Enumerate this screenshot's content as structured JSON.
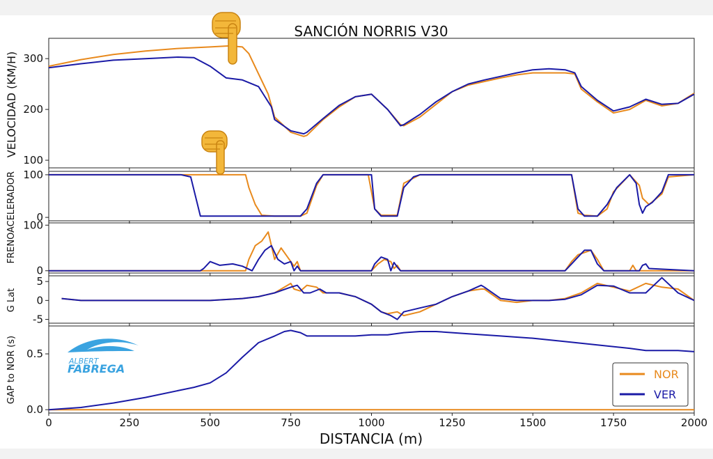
{
  "chart_data": {
    "type": "line",
    "title": "SANCIÓN NORRIS V30",
    "xlabel": "DISTANCIA (m)",
    "xlim": [
      0,
      2000
    ],
    "x_ticks": [
      "0",
      "250",
      "500",
      "750",
      "1000",
      "1250",
      "1500",
      "1750",
      "2000"
    ],
    "colors": {
      "NOR": "#e8891c",
      "VER": "#1a1aa6"
    },
    "legend": {
      "placement": "bottom-right",
      "entries": [
        "NOR",
        "VER"
      ]
    },
    "watermark": {
      "line1": "ALBERT",
      "line2": "FABREGA"
    },
    "pointer_icons": [
      {
        "name": "pointing-down-hand-icon",
        "x": 580,
        "panel": "speed"
      },
      {
        "name": "pointing-down-hand-icon",
        "x": 540,
        "panel": "throttle"
      }
    ],
    "panels": [
      {
        "id": "speed",
        "ylabel": "VELOCIDAD (KM/H)",
        "ylim": [
          85,
          340
        ],
        "yticks": [
          100,
          200,
          300
        ],
        "series": [
          {
            "name": "NOR",
            "x": [
              0,
              100,
              200,
              300,
              400,
              500,
              560,
              600,
              620,
              650,
              680,
              700,
              750,
              790,
              800,
              850,
              900,
              950,
              1000,
              1050,
              1090,
              1100,
              1150,
              1200,
              1250,
              1300,
              1350,
              1400,
              1450,
              1500,
              1550,
              1600,
              1630,
              1650,
              1700,
              1750,
              1800,
              1850,
              1900,
              1950,
              2000
            ],
            "y": [
              285,
              298,
              308,
              315,
              320,
              323,
              325,
              323,
              310,
              270,
              230,
              185,
              155,
              147,
              149,
              180,
              205,
              225,
              230,
              200,
              170,
              168,
              185,
              210,
              235,
              248,
              255,
              262,
              268,
              272,
              272,
              272,
              270,
              240,
              215,
              193,
              200,
              218,
              207,
              212,
              232
            ]
          },
          {
            "name": "VER",
            "x": [
              0,
              100,
              200,
              300,
              400,
              450,
              500,
              550,
              600,
              650,
              690,
              700,
              750,
              790,
              800,
              850,
              900,
              950,
              1000,
              1050,
              1090,
              1100,
              1150,
              1200,
              1250,
              1300,
              1350,
              1400,
              1450,
              1500,
              1550,
              1600,
              1630,
              1650,
              1700,
              1750,
              1800,
              1850,
              1900,
              1950,
              2000
            ],
            "y": [
              282,
              290,
              297,
              300,
              303,
              302,
              285,
              262,
              258,
              245,
              205,
              180,
              158,
              152,
              155,
              182,
              208,
              225,
              230,
              200,
              168,
              170,
              190,
              215,
              235,
              250,
              258,
              265,
              272,
              278,
              280,
              278,
              272,
              245,
              218,
              197,
              205,
              220,
              210,
              212,
              230
            ]
          }
        ]
      },
      {
        "id": "throttle",
        "ylabel": "ACELERADOR",
        "ylim": [
          -8,
          108
        ],
        "yticks": [
          0,
          100
        ],
        "series": [
          {
            "name": "NOR",
            "x": [
              0,
              440,
              450,
              600,
              610,
              620,
              640,
              660,
              700,
              780,
              800,
              830,
              850,
              990,
              1010,
              1030,
              1070,
              1080,
              1100,
              1130,
              1150,
              1620,
              1640,
              1660,
              1700,
              1730,
              1750,
              1800,
              1830,
              1840,
              1860,
              1900,
              1920,
              2000
            ],
            "y": [
              100,
              100,
              100,
              100,
              100,
              70,
              30,
              5,
              3,
              3,
              10,
              75,
              100,
              100,
              20,
              5,
              5,
              5,
              80,
              92,
              100,
              100,
              10,
              5,
              3,
              20,
              60,
              100,
              75,
              45,
              30,
              55,
              95,
              100
            ]
          },
          {
            "name": "VER",
            "x": [
              0,
              410,
              440,
              470,
              520,
              550,
              600,
              620,
              660,
              700,
              760,
              780,
              800,
              830,
              850,
              990,
              1000,
              1010,
              1030,
              1070,
              1080,
              1100,
              1130,
              1150,
              1620,
              1640,
              1660,
              1700,
              1730,
              1760,
              1800,
              1820,
              1830,
              1840,
              1850,
              1870,
              1900,
              1920,
              2000
            ],
            "y": [
              100,
              100,
              95,
              3,
              3,
              3,
              3,
              3,
              3,
              3,
              3,
              3,
              20,
              80,
              100,
              100,
              100,
              20,
              3,
              3,
              3,
              70,
              95,
              100,
              100,
              20,
              3,
              3,
              30,
              70,
              100,
              80,
              30,
              10,
              25,
              35,
              60,
              100,
              100
            ]
          }
        ]
      },
      {
        "id": "brake",
        "ylabel": "FRENO",
        "ylim": [
          -5,
          105
        ],
        "yticks": [
          0,
          100
        ],
        "series": [
          {
            "name": "NOR",
            "x": [
              0,
              600,
              610,
              620,
              640,
              660,
              680,
              690,
              700,
              720,
              740,
              760,
              770,
              780,
              1000,
              1020,
              1040,
              1060,
              1070,
              1080,
              1090,
              1100,
              1600,
              1620,
              1640,
              1660,
              1680,
              1700,
              1720,
              1800,
              1810,
              1820,
              2000
            ],
            "y": [
              0,
              0,
              0,
              25,
              55,
              65,
              85,
              55,
              25,
              50,
              30,
              10,
              20,
              0,
              0,
              15,
              25,
              20,
              5,
              12,
              0,
              0,
              0,
              20,
              35,
              40,
              45,
              25,
              0,
              0,
              12,
              0,
              0
            ]
          },
          {
            "name": "VER",
            "x": [
              0,
              470,
              480,
              500,
              530,
              570,
              600,
              630,
              650,
              670,
              690,
              710,
              730,
              750,
              760,
              770,
              780,
              1000,
              1010,
              1030,
              1050,
              1060,
              1070,
              1080,
              1090,
              1600,
              1620,
              1640,
              1660,
              1680,
              1700,
              1720,
              1830,
              1840,
              1850,
              1860,
              2000
            ],
            "y": [
              0,
              0,
              5,
              20,
              12,
              15,
              10,
              0,
              25,
              45,
              55,
              25,
              15,
              20,
              0,
              10,
              0,
              0,
              15,
              30,
              25,
              0,
              18,
              8,
              0,
              0,
              15,
              30,
              45,
              45,
              15,
              0,
              0,
              12,
              15,
              5,
              0
            ]
          }
        ]
      },
      {
        "id": "glat",
        "ylabel": "G Lat",
        "ylim": [
          -6,
          6.5
        ],
        "yticks": [
          -5,
          0,
          5
        ],
        "series": [
          {
            "name": "NOR",
            "x": [
              40,
              100,
              200,
              300,
              400,
              500,
              600,
              650,
              700,
              750,
              760,
              780,
              800,
              830,
              850,
              900,
              950,
              1000,
              1030,
              1050,
              1080,
              1100,
              1150,
              1200,
              1250,
              1300,
              1340,
              1350,
              1400,
              1450,
              1500,
              1550,
              1600,
              1650,
              1700,
              1750,
              1800,
              1850,
              1900,
              1950,
              2000
            ],
            "y": [
              0.5,
              0,
              0,
              0,
              0,
              0,
              0.5,
              1,
              2,
              4.5,
              3,
              2.5,
              4,
              3.5,
              2,
              2,
              1,
              -1,
              -3,
              -3.5,
              -3,
              -4,
              -3,
              -1,
              1,
              2.5,
              3,
              3,
              0,
              -0.5,
              0,
              0,
              0.5,
              2,
              4.5,
              3.5,
              2.5,
              4.5,
              3.5,
              3,
              0
            ]
          },
          {
            "name": "VER",
            "x": [
              40,
              100,
              200,
              300,
              400,
              500,
              600,
              650,
              700,
              750,
              770,
              790,
              810,
              840,
              860,
              900,
              950,
              1000,
              1030,
              1060,
              1080,
              1100,
              1150,
              1200,
              1250,
              1300,
              1340,
              1350,
              1400,
              1450,
              1500,
              1550,
              1600,
              1650,
              1700,
              1750,
              1800,
              1850,
              1900,
              1950,
              2000
            ],
            "y": [
              0.5,
              0,
              0,
              0,
              0,
              0,
              0.5,
              1,
              2,
              3.5,
              4,
              2,
              2,
              3,
              2,
              2,
              1,
              -1,
              -3,
              -4,
              -5,
              -3,
              -2,
              -1,
              1,
              2.5,
              4,
              3.5,
              0.5,
              0,
              0,
              0,
              0.3,
              1.5,
              4,
              3.8,
              2,
              2,
              6,
              2,
              0
            ]
          }
        ]
      },
      {
        "id": "gap",
        "ylabel": "GAP to NOR (s)",
        "ylim": [
          -0.03,
          0.75
        ],
        "yticks": [
          0.0,
          0.5
        ],
        "series": [
          {
            "name": "NOR",
            "x": [
              0,
              2000
            ],
            "y": [
              0,
              0
            ]
          },
          {
            "name": "VER",
            "x": [
              0,
              100,
              200,
              300,
              400,
              450,
              500,
              550,
              600,
              650,
              700,
              730,
              750,
              780,
              800,
              850,
              900,
              950,
              1000,
              1050,
              1100,
              1150,
              1200,
              1250,
              1300,
              1400,
              1500,
              1600,
              1700,
              1800,
              1850,
              1900,
              1950,
              2000
            ],
            "y": [
              0,
              0.02,
              0.06,
              0.11,
              0.17,
              0.2,
              0.24,
              0.33,
              0.47,
              0.6,
              0.66,
              0.7,
              0.71,
              0.69,
              0.66,
              0.66,
              0.66,
              0.66,
              0.67,
              0.67,
              0.69,
              0.7,
              0.7,
              0.69,
              0.68,
              0.66,
              0.64,
              0.61,
              0.58,
              0.55,
              0.53,
              0.53,
              0.53,
              0.52
            ]
          }
        ]
      }
    ]
  }
}
